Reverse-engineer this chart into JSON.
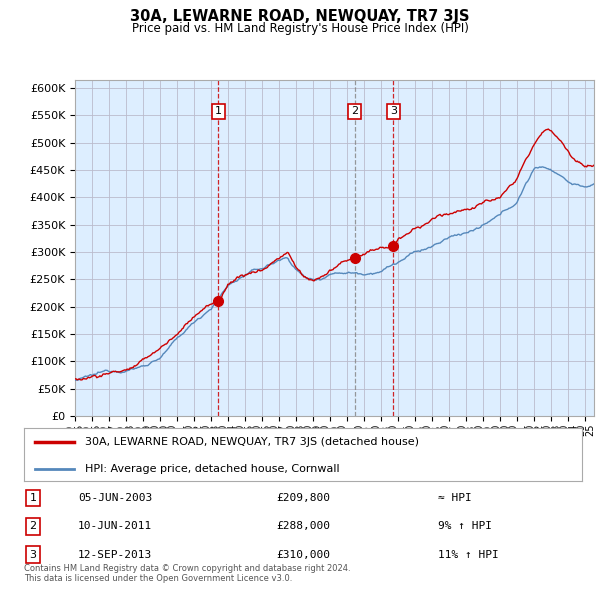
{
  "title": "30A, LEWARNE ROAD, NEWQUAY, TR7 3JS",
  "subtitle": "Price paid vs. HM Land Registry's House Price Index (HPI)",
  "ylabel_ticks": [
    "£0",
    "£50K",
    "£100K",
    "£150K",
    "£200K",
    "£250K",
    "£300K",
    "£350K",
    "£400K",
    "£450K",
    "£500K",
    "£550K",
    "£600K"
  ],
  "ytick_values": [
    0,
    50000,
    100000,
    150000,
    200000,
    250000,
    300000,
    350000,
    400000,
    450000,
    500000,
    550000,
    600000
  ],
  "xlim_start": 1995.3,
  "xlim_end": 2025.5,
  "ylim_min": 0,
  "ylim_max": 615000,
  "red_line_color": "#cc0000",
  "blue_line_color": "#5588bb",
  "plot_bg_color": "#ddeeff",
  "transactions": [
    {
      "label": "1",
      "date_num": 2003.43,
      "price": 209800,
      "vline_color": "#cc0000"
    },
    {
      "label": "2",
      "date_num": 2011.44,
      "price": 288000,
      "vline_color": "#888888"
    },
    {
      "label": "3",
      "date_num": 2013.71,
      "price": 310000,
      "vline_color": "#cc0000"
    }
  ],
  "table_rows": [
    {
      "num": "1",
      "date": "05-JUN-2003",
      "price": "£209,800",
      "hpi": "≈ HPI"
    },
    {
      "num": "2",
      "date": "10-JUN-2011",
      "price": "£288,000",
      "hpi": "9% ↑ HPI"
    },
    {
      "num": "3",
      "date": "12-SEP-2013",
      "price": "£310,000",
      "hpi": "11% ↑ HPI"
    }
  ],
  "legend_entries": [
    {
      "label": "30A, LEWARNE ROAD, NEWQUAY, TR7 3JS (detached house)",
      "color": "#cc0000"
    },
    {
      "label": "HPI: Average price, detached house, Cornwall",
      "color": "#5588bb"
    }
  ],
  "footer": "Contains HM Land Registry data © Crown copyright and database right 2024.\nThis data is licensed under the Open Government Licence v3.0.",
  "background_color": "#ffffff",
  "grid_color": "#bbbbcc"
}
